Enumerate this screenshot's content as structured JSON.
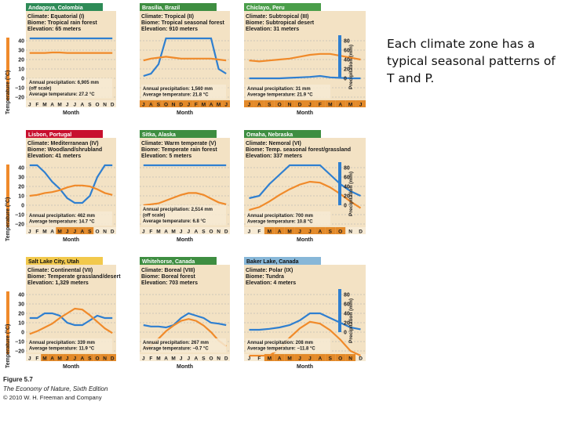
{
  "slide": {
    "side_text": "Each climate zone has a typical seasonal patterns of T and P."
  },
  "figure": {
    "label": "Figure 5.7",
    "book": "The Economy of Nature, Sixth Edition",
    "copyright": "© 2010 W. H. Freeman and Company",
    "y_left_label": "Temperature (°C)",
    "y_right_label": "Precipitation (mm)",
    "x_label": "Month",
    "temp_ticks": [
      "40",
      "30",
      "20",
      "10",
      "0",
      "−10",
      "−20"
    ],
    "precip_ticks": [
      "80",
      "60",
      "40",
      "20",
      "0"
    ],
    "colors": {
      "temperature": "#f08a2a",
      "precipitation": "#2f7fd0",
      "grid": "#a9a9a9",
      "panel_bg": "#f3e2c4",
      "bottom_band": "#e38a2a"
    }
  },
  "chart_data": [
    {
      "type": "line",
      "title": "Andagoya, Colombia",
      "header_color": "#2e8b57",
      "header_text": "#ffffff",
      "info": [
        "Climate: Equatorial (I)",
        "Biome: Tropical rain forest",
        "Elevation: 65 meters"
      ],
      "annual_precipitation": "Annual precipitation: 6,905 mm",
      "precip_note": "(off scale)",
      "average_temperature": "Average temperature: 27.2 °C",
      "months": [
        "J",
        "F",
        "M",
        "A",
        "M",
        "J",
        "J",
        "A",
        "S",
        "O",
        "N",
        "D"
      ],
      "dry_months": [],
      "series": [
        {
          "name": "Temperature",
          "values": [
            27,
            27,
            27,
            27.5,
            27.5,
            27,
            27,
            27,
            27,
            27,
            27,
            27
          ]
        },
        {
          "name": "Precipitation",
          "values": [
            120,
            120,
            120,
            120,
            120,
            120,
            120,
            120,
            120,
            120,
            120,
            120
          ]
        }
      ]
    },
    {
      "type": "line",
      "title": "Brasília, Brazil",
      "header_color": "#3e8e41",
      "header_text": "#ffffff",
      "info": [
        "Climate: Tropical (II)",
        "Biome: Tropical seasonal forest",
        "Elevation: 910 meters"
      ],
      "annual_precipitation": "Annual precipitation: 1,560 mm",
      "precip_note": "",
      "average_temperature": "Average temperature: 21.8 °C",
      "months": [
        "J",
        "A",
        "S",
        "O",
        "N",
        "D",
        "J",
        "F",
        "M",
        "A",
        "M",
        "J"
      ],
      "dry_months": [
        0,
        1,
        2,
        3,
        4,
        5,
        6,
        7,
        8,
        9,
        10,
        11
      ],
      "series": [
        {
          "name": "Temperature",
          "values": [
            19,
            21,
            22,
            23,
            22,
            21,
            21,
            21,
            21,
            21,
            20,
            19
          ]
        },
        {
          "name": "Precipitation",
          "values": [
            5,
            10,
            30,
            120,
            120,
            120,
            120,
            120,
            120,
            120,
            20,
            10
          ]
        }
      ]
    },
    {
      "type": "line",
      "title": "Chiclayo, Peru",
      "header_color": "#4a9e4a",
      "header_text": "#ffffff",
      "info": [
        "Climate: Subtropical (III)",
        "Biome: Subtropical desert",
        "Elevation: 31 meters"
      ],
      "annual_precipitation": "Annual precipitation: 31 mm",
      "precip_note": "",
      "average_temperature": "Average temperature: 21.9 °C",
      "months": [
        "J",
        "A",
        "S",
        "O",
        "N",
        "D",
        "J",
        "F",
        "M",
        "A",
        "M",
        "J"
      ],
      "dry_months": [
        0,
        1,
        2,
        3,
        4,
        5,
        6,
        7,
        8,
        9,
        10,
        11
      ],
      "series": [
        {
          "name": "Temperature",
          "values": [
            19,
            18,
            19,
            20,
            21,
            23,
            25,
            26,
            26,
            24,
            22,
            20
          ]
        },
        {
          "name": "Precipitation",
          "values": [
            0,
            0,
            0,
            0,
            1,
            2,
            3,
            5,
            2,
            1,
            0,
            0
          ]
        }
      ]
    },
    {
      "type": "line",
      "title": "Lisbon, Portugal",
      "header_color": "#c8102e",
      "header_text": "#ffffff",
      "info": [
        "Climate: Mediterranean (IV)",
        "Biome: Woodland/shrubland",
        "Elevation: 41 meters"
      ],
      "annual_precipitation": "Annual precipitation: 462 mm",
      "precip_note": "",
      "average_temperature": "Average temperature: 14.7 °C",
      "months": [
        "J",
        "F",
        "M",
        "A",
        "M",
        "J",
        "J",
        "A",
        "S",
        "O",
        "N",
        "D"
      ],
      "dry_months": [
        4,
        5,
        6,
        7,
        8
      ],
      "series": [
        {
          "name": "Temperature",
          "values": [
            10,
            11,
            13,
            14,
            16,
            19,
            21,
            21,
            20,
            17,
            13,
            11
          ]
        },
        {
          "name": "Precipitation",
          "values": [
            100,
            85,
            70,
            50,
            35,
            15,
            5,
            5,
            20,
            60,
            120,
            110
          ]
        }
      ]
    },
    {
      "type": "line",
      "title": "Sitka, Alaska",
      "header_color": "#3e8e41",
      "header_text": "#ffffff",
      "info": [
        "Climate: Warm temperate (V)",
        "Biome: Temperate rain forest",
        "Elevation: 5 meters"
      ],
      "annual_precipitation": "Annual precipitation: 2,514 mm",
      "precip_note": "(off scale)",
      "average_temperature": "Average temperature: 6.8 °C",
      "months": [
        "J",
        "F",
        "M",
        "A",
        "M",
        "J",
        "J",
        "A",
        "S",
        "O",
        "N",
        "D"
      ],
      "dry_months": [],
      "series": [
        {
          "name": "Temperature",
          "values": [
            0,
            1,
            2,
            5,
            8,
            11,
            13,
            13,
            11,
            7,
            3,
            1
          ]
        },
        {
          "name": "Precipitation",
          "values": [
            120,
            120,
            120,
            120,
            120,
            120,
            120,
            120,
            120,
            120,
            120,
            120
          ]
        }
      ]
    },
    {
      "type": "line",
      "title": "Omaha, Nebraska",
      "header_color": "#3e8e41",
      "header_text": "#ffffff",
      "info": [
        "Climate: Nemoral (VI)",
        "Biome: Temp. seasonal forest/grassland",
        "Elevation: 337 meters"
      ],
      "annual_precipitation": "Annual precipitation: 700 mm",
      "precip_note": "",
      "average_temperature": "Average temperature: 10.8 °C",
      "months": [
        "J",
        "F",
        "M",
        "A",
        "M",
        "J",
        "J",
        "A",
        "S",
        "O",
        "N",
        "D"
      ],
      "dry_months": [
        2,
        3,
        4,
        5,
        6,
        7,
        8,
        9
      ],
      "series": [
        {
          "name": "Temperature",
          "values": [
            -5,
            -2,
            4,
            11,
            17,
            22,
            25,
            24,
            19,
            12,
            4,
            -3
          ]
        },
        {
          "name": "Precipitation",
          "values": [
            15,
            20,
            45,
            65,
            100,
            110,
            90,
            100,
            65,
            45,
            30,
            20
          ]
        }
      ]
    },
    {
      "type": "line",
      "title": "Salt Lake City, Utah",
      "header_color": "#f2c94c",
      "header_text": "#111111",
      "info": [
        "Climate: Continental (VII)",
        "Biome: Temperate grassland/desert",
        "Elevation: 1,329 meters"
      ],
      "annual_precipitation": "Annual precipitation: 339 mm",
      "precip_note": "",
      "average_temperature": "Average temperature: 11.9 °C",
      "months": [
        "J",
        "F",
        "M",
        "A",
        "M",
        "J",
        "J",
        "A",
        "S",
        "O",
        "N",
        "D"
      ],
      "dry_months": [
        2,
        3,
        4,
        5,
        6,
        7,
        8,
        9,
        10,
        11
      ],
      "series": [
        {
          "name": "Temperature",
          "values": [
            -2,
            1,
            5,
            9,
            15,
            20,
            25,
            24,
            18,
            11,
            4,
            -1
          ]
        },
        {
          "name": "Precipitation",
          "values": [
            30,
            30,
            40,
            40,
            35,
            20,
            15,
            15,
            25,
            35,
            30,
            30
          ]
        }
      ]
    },
    {
      "type": "line",
      "title": "Whitehorse, Canada",
      "header_color": "#3e8e41",
      "header_text": "#ffffff",
      "info": [
        "Climate: Boreal (VIII)",
        "Biome: Boreal forest",
        "Elevation: 703 meters"
      ],
      "annual_precipitation": "Annual precipitation: 267 mm",
      "precip_note": "",
      "average_temperature": "Average temperature: −0.7 °C",
      "months": [
        "J",
        "F",
        "M",
        "A",
        "M",
        "J",
        "J",
        "A",
        "S",
        "O",
        "N",
        "D"
      ],
      "dry_months": [],
      "series": [
        {
          "name": "Temperature",
          "values": [
            -18,
            -14,
            -7,
            1,
            7,
            12,
            14,
            12,
            7,
            0,
            -9,
            -15
          ]
        },
        {
          "name": "Precipitation",
          "values": [
            15,
            12,
            12,
            10,
            15,
            30,
            40,
            35,
            30,
            20,
            18,
            15
          ]
        }
      ]
    },
    {
      "type": "line",
      "title": "Baker Lake, Canada",
      "header_color": "#87b7d8",
      "header_text": "#111111",
      "info": [
        "Climate: Polar (IX)",
        "Biome: Tundra",
        "Elevation: 4 meters"
      ],
      "annual_precipitation": "Annual precipitation: 208 mm",
      "precip_note": "",
      "average_temperature": "Average temperature: −11.8 °C",
      "months": [
        "J",
        "F",
        "M",
        "A",
        "M",
        "J",
        "J",
        "A",
        "S",
        "O",
        "N",
        "D"
      ],
      "dry_months": [
        2,
        3,
        4,
        5,
        6,
        7,
        8,
        9,
        10
      ],
      "series": [
        {
          "name": "Temperature",
          "values": [
            -33,
            -32,
            -28,
            -18,
            -6,
            4,
            11,
            9,
            2,
            -8,
            -20,
            -29
          ]
        },
        {
          "name": "Precipitation",
          "values": [
            5,
            5,
            7,
            10,
            15,
            25,
            40,
            40,
            30,
            20,
            10,
            6
          ]
        }
      ]
    }
  ]
}
